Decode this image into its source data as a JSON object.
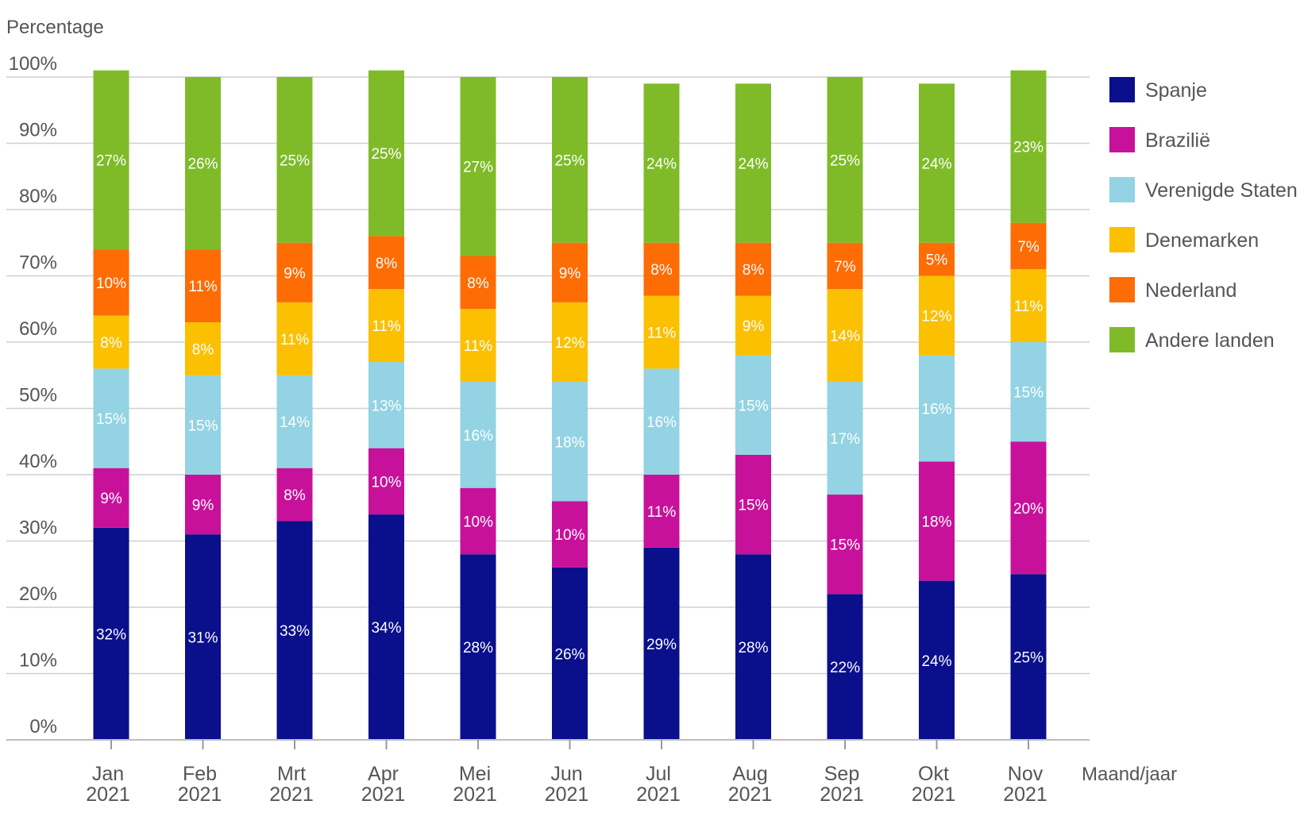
{
  "chart_data": {
    "type": "bar",
    "stacked": true,
    "ylabel": "Percentage",
    "xlabel": "Maand/jaar",
    "ylim": [
      0,
      100
    ],
    "y_ticks": [
      "0%",
      "10%",
      "20%",
      "30%",
      "40%",
      "50%",
      "60%",
      "70%",
      "80%",
      "90%",
      "100%"
    ],
    "grid": true,
    "legend_position": "right",
    "categories": [
      {
        "month": "Jan",
        "year": "2021"
      },
      {
        "month": "Feb",
        "year": "2021"
      },
      {
        "month": "Mrt",
        "year": "2021"
      },
      {
        "month": "Apr",
        "year": "2021"
      },
      {
        "month": "Mei",
        "year": "2021"
      },
      {
        "month": "Jun",
        "year": "2021"
      },
      {
        "month": "Jul",
        "year": "2021"
      },
      {
        "month": "Aug",
        "year": "2021"
      },
      {
        "month": "Sep",
        "year": "2021"
      },
      {
        "month": "Okt",
        "year": "2021"
      },
      {
        "month": "Nov",
        "year": "2021"
      }
    ],
    "series": [
      {
        "name": "Spanje",
        "color": "#0a0f8c",
        "values": [
          32,
          31,
          33,
          34,
          28,
          26,
          29,
          28,
          22,
          24,
          25
        ]
      },
      {
        "name": "Brazilië",
        "color": "#c8119a",
        "values": [
          9,
          9,
          8,
          10,
          10,
          10,
          11,
          15,
          15,
          18,
          20
        ]
      },
      {
        "name": "Verenigde Staten",
        "color": "#93d3e3",
        "values": [
          15,
          15,
          14,
          13,
          16,
          18,
          16,
          15,
          17,
          16,
          15
        ]
      },
      {
        "name": "Denemarken",
        "color": "#fbc002",
        "values": [
          8,
          8,
          11,
          11,
          11,
          12,
          11,
          9,
          14,
          12,
          11
        ]
      },
      {
        "name": "Nederland",
        "color": "#fd6c05",
        "values": [
          10,
          11,
          9,
          8,
          8,
          9,
          8,
          8,
          7,
          5,
          7
        ]
      },
      {
        "name": "Andere landen",
        "color": "#7fbb29",
        "values": [
          27,
          26,
          25,
          25,
          27,
          25,
          24,
          24,
          25,
          24,
          23
        ]
      }
    ]
  }
}
